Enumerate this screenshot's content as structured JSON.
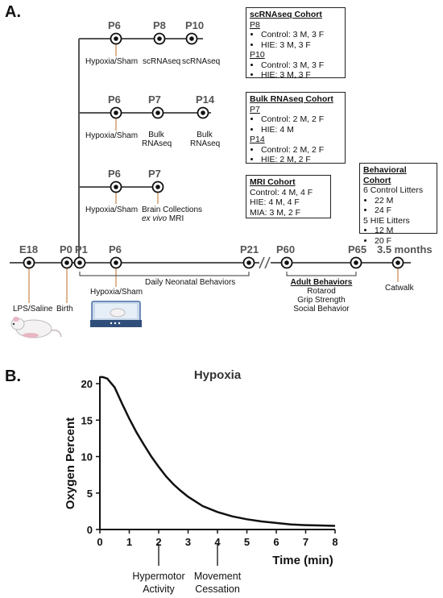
{
  "panel_a": {
    "label": "A.",
    "row1": {
      "points": [
        {
          "tp": "P6",
          "event": "Hypoxia/Sham"
        },
        {
          "tp": "P8",
          "event": "scRNAseq"
        },
        {
          "tp": "P10",
          "event": "scRNAseq"
        }
      ]
    },
    "row2": {
      "points": [
        {
          "tp": "P6",
          "event": "Hypoxia/Sham"
        },
        {
          "tp": "P7",
          "event": "Bulk RNAseq"
        },
        {
          "tp": "P14",
          "event": "Bulk RNAseq"
        }
      ]
    },
    "row3": {
      "points": [
        {
          "tp": "P6",
          "event": "Hypoxia/Sham"
        },
        {
          "tp": "P7",
          "event": "Brain Collections",
          "event2": "ex vivo",
          "event3": " MRI"
        }
      ]
    },
    "main": {
      "points": [
        {
          "tp": "E18",
          "event": "LPS/Saline"
        },
        {
          "tp": "P0",
          "event": "Birth"
        },
        {
          "tp": "P1"
        },
        {
          "tp": "P6",
          "event": "Hypoxia/Sham"
        },
        {
          "tp": "P21"
        },
        {
          "tp": "P60"
        },
        {
          "tp": "P65"
        },
        {
          "tp": "3.5 months",
          "event": "Catwalk"
        }
      ],
      "daily_label": "Daily Neonatal Behaviors",
      "adult_title": "Adult Behaviors",
      "adult_items": [
        "Rotarod",
        "Grip Strength",
        "Social Behavior"
      ]
    },
    "boxes": {
      "scrna": {
        "title": "scRNAseq Cohort",
        "groups": [
          {
            "label": "P8",
            "items": [
              "Control: 3 M, 3 F",
              "HIE: 3 M, 3 F"
            ]
          },
          {
            "label": "P10",
            "items": [
              "Control: 3 M, 3 F",
              "HIE: 3 M, 3 F"
            ]
          }
        ]
      },
      "bulk": {
        "title": "Bulk RNAseq Cohort",
        "groups": [
          {
            "label": "P7",
            "items": [
              "Control: 2 M, 2 F",
              "HIE: 4 M"
            ]
          },
          {
            "label": "P14",
            "items": [
              "Control: 2 M, 2 F",
              "HIE: 2 M, 2 F"
            ]
          }
        ]
      },
      "mri": {
        "title": "MRI Cohort",
        "lines": [
          "Control: 4 M, 4 F",
          "HIE: 4 M, 4 F",
          "MIA: 3 M, 2 F"
        ]
      },
      "behav": {
        "title": "Behavioral Cohort",
        "line1": "6 Control Litters",
        "items1": [
          "22 M",
          "24 F"
        ],
        "line2": "5 HIE Litters",
        "items2": [
          "12 M",
          "20 F"
        ]
      }
    }
  },
  "panel_b": {
    "label": "B.",
    "annotations": [
      {
        "l1": "Hypermotor",
        "l2": "Activity"
      },
      {
        "l1": "Movement",
        "l2": "Cessation"
      }
    ]
  },
  "chart_data": {
    "type": "line",
    "title": "Hypoxia",
    "xlabel": "Time (min)",
    "ylabel": "Oxygen Percent",
    "xlim": [
      0,
      8
    ],
    "ylim": [
      0,
      21
    ],
    "xticks": [
      "0",
      "1",
      "2",
      "3",
      "4",
      "5",
      "6",
      "7",
      "8"
    ],
    "yticks": [
      "0",
      "5",
      "10",
      "15",
      "20"
    ],
    "grid": false,
    "series": [
      {
        "x": [
          0,
          0.1,
          0.25,
          0.5,
          0.75,
          1,
          1.25,
          1.5,
          1.75,
          2,
          2.25,
          2.5,
          2.75,
          3,
          3.5,
          4,
          4.5,
          5,
          5.5,
          6,
          6.5,
          7,
          7.5,
          8
        ],
        "values": [
          20.9,
          20.9,
          20.7,
          19.5,
          17.3,
          15.2,
          13.3,
          11.6,
          10.0,
          8.6,
          7.3,
          6.2,
          5.3,
          4.5,
          3.2,
          2.4,
          1.8,
          1.4,
          1.1,
          0.9,
          0.7,
          0.6,
          0.55,
          0.5
        ]
      }
    ]
  },
  "colors": {
    "line": "#555555",
    "marker_fill": "#111111",
    "orange": "#c8864a",
    "text": "#111111"
  }
}
